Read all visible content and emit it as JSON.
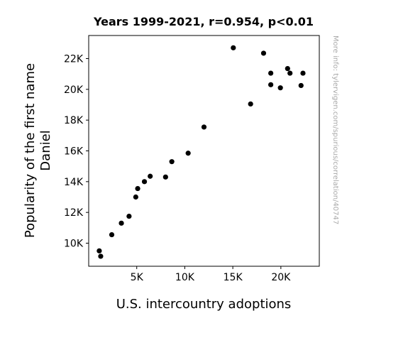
{
  "chart_data": {
    "type": "scatter",
    "title": "Years 1999-2021, r=0.954, p<0.01",
    "xlabel": "U.S. intercountry adoptions",
    "ylabel_lines": [
      "Popularity of the first name",
      "Daniel"
    ],
    "watermark": "More info: tylervigen.com/spurious/correlation/40747",
    "xlim": [
      0,
      24000
    ],
    "ylim": [
      8500,
      23500
    ],
    "x_ticks": [
      {
        "value": 5000,
        "label": "5K"
      },
      {
        "value": 10000,
        "label": "10K"
      },
      {
        "value": 15000,
        "label": "15K"
      },
      {
        "value": 20000,
        "label": "20K"
      }
    ],
    "y_ticks": [
      {
        "value": 10000,
        "label": "10K"
      },
      {
        "value": 12000,
        "label": "12K"
      },
      {
        "value": 14000,
        "label": "14K"
      },
      {
        "value": 16000,
        "label": "16K"
      },
      {
        "value": 18000,
        "label": "18K"
      },
      {
        "value": 20000,
        "label": "20K"
      },
      {
        "value": 22000,
        "label": "22K"
      }
    ],
    "points": [
      {
        "x": 1100,
        "y": 9500
      },
      {
        "x": 1250,
        "y": 9150
      },
      {
        "x": 2400,
        "y": 10550
      },
      {
        "x": 3400,
        "y": 11300
      },
      {
        "x": 4200,
        "y": 11750
      },
      {
        "x": 4900,
        "y": 13000
      },
      {
        "x": 5100,
        "y": 13550
      },
      {
        "x": 5800,
        "y": 14000
      },
      {
        "x": 6400,
        "y": 14350
      },
      {
        "x": 8000,
        "y": 14300
      },
      {
        "x": 8650,
        "y": 15300
      },
      {
        "x": 10350,
        "y": 15850
      },
      {
        "x": 12000,
        "y": 17550
      },
      {
        "x": 15050,
        "y": 22700
      },
      {
        "x": 16850,
        "y": 19050
      },
      {
        "x": 18200,
        "y": 22350
      },
      {
        "x": 18950,
        "y": 21050
      },
      {
        "x": 18950,
        "y": 20300
      },
      {
        "x": 19950,
        "y": 20100
      },
      {
        "x": 20700,
        "y": 21350
      },
      {
        "x": 20950,
        "y": 21050
      },
      {
        "x": 22100,
        "y": 20250
      },
      {
        "x": 22300,
        "y": 21050
      }
    ],
    "point_color": "#000000",
    "grid": false
  }
}
